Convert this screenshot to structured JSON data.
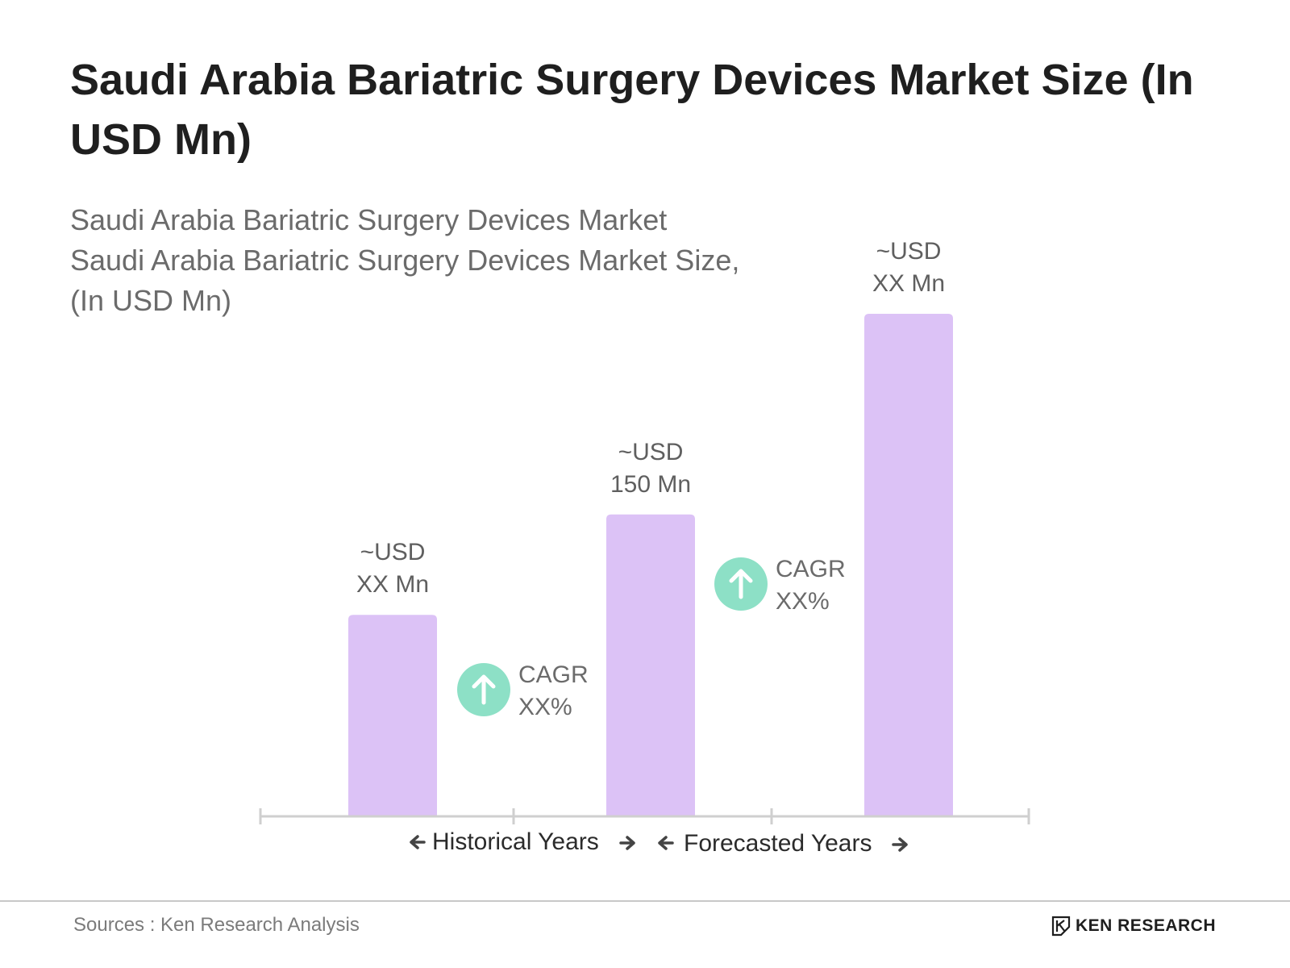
{
  "title": "Saudi Arabia Bariatric Surgery Devices Market Size (In USD Mn)",
  "subtitle": {
    "line1": "Saudi Arabia Bariatric Surgery Devices Market",
    "line2": "Saudi Arabia Bariatric Surgery Devices Market Size,",
    "line3": "(In USD Mn)"
  },
  "chart_data": {
    "type": "bar",
    "bar_color": "#dcc2f6",
    "categories": [
      "",
      "",
      ""
    ],
    "series": [
      {
        "values": [
          100,
          150,
          250
        ]
      }
    ],
    "data_labels": [
      [
        "~USD",
        "XX Mn"
      ],
      [
        "~USD",
        "150 Mn"
      ],
      [
        "~USD",
        "XX Mn"
      ]
    ],
    "cagr": [
      {
        "line1": "CAGR",
        "line2": "XX%"
      },
      {
        "line1": "CAGR",
        "line2": "XX%"
      }
    ],
    "cagr_color": "#8de0c6",
    "periods": [
      "Historical Years",
      "Forecasted Years"
    ]
  },
  "footer": {
    "source": "Sources : Ken Research Analysis",
    "brand": "KEN RESEARCH"
  }
}
